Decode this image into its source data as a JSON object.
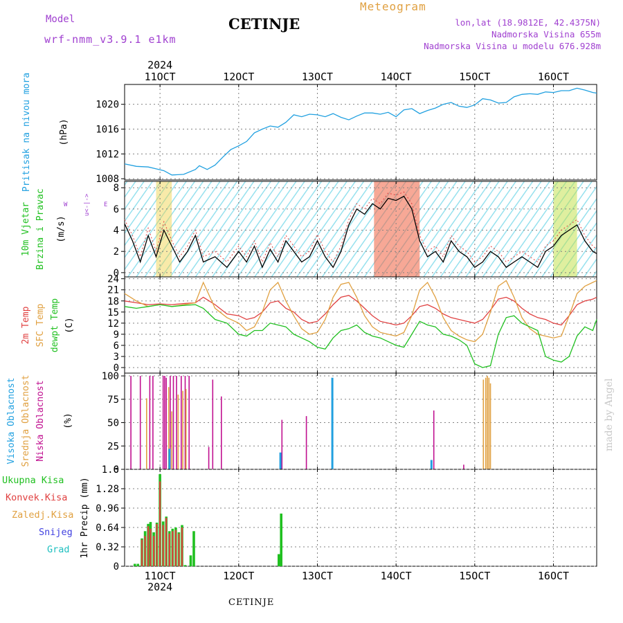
{
  "header": {
    "model_label": "Model",
    "model_name": "wrf-nmm_v3.9.1 e1km",
    "station": "CETINJE",
    "title": "Meteogram",
    "lonlat": "lon,lat (18.9812E, 42.4375N)",
    "elevation": "Nadmorska Visina 655m",
    "model_elevation": "Nadmorska Visina u modelu 676.928m"
  },
  "footer": {
    "station": "CETINJE"
  },
  "watermark": "made by Angel",
  "colors": {
    "pressure": "#20a0e0",
    "temp2m": "#e04040",
    "sfc": "#e0a040",
    "dewpt": "#20c020",
    "wind_speed": "#000000",
    "high_cloud": "#20a0e0",
    "mid_cloud": "#e0a040",
    "low_cloud": "#c01090",
    "precip_total": "#20c020",
    "precip_conv": "#e04040",
    "wind_labels": "#a040d0"
  },
  "chart_data": [
    {
      "type": "line",
      "id": "pressure",
      "ylabel_lines": [
        "Pritisak na nivou mora",
        "(hPa)"
      ],
      "yticks": [
        1008,
        1012,
        1016,
        1020
      ],
      "ylim": [
        1007.8,
        1023.2
      ],
      "xticks": [
        "11OCT",
        "12OCT",
        "13OCT",
        "14OCT",
        "15OCT",
        "16OCT"
      ],
      "xyear": "2024",
      "xlim": [
        10.55,
        16.55
      ],
      "grid": true,
      "series": [
        {
          "key": "pressure",
          "x": [
            10.55,
            10.7,
            10.85,
            10.95,
            11.05,
            11.15,
            11.3,
            11.45,
            11.5,
            11.6,
            11.7,
            11.8,
            11.9,
            12.0,
            12.1,
            12.2,
            12.3,
            12.4,
            12.5,
            12.6,
            12.7,
            12.8,
            12.9,
            13.0,
            13.1,
            13.2,
            13.3,
            13.4,
            13.5,
            13.6,
            13.7,
            13.8,
            13.9,
            14.0,
            14.1,
            14.2,
            14.3,
            14.4,
            14.5,
            14.6,
            14.7,
            14.8,
            14.9,
            15.0,
            15.1,
            15.2,
            15.3,
            15.4,
            15.5,
            15.6,
            15.7,
            15.8,
            15.9,
            16.0,
            16.1,
            16.2,
            16.3,
            16.4,
            16.5,
            16.55
          ],
          "values": [
            1010.4,
            1010.0,
            1009.9,
            1009.6,
            1009.3,
            1008.6,
            1008.7,
            1009.5,
            1010.1,
            1009.5,
            1010.2,
            1011.5,
            1012.7,
            1013.3,
            1014.0,
            1015.4,
            1016.0,
            1016.5,
            1016.3,
            1017.1,
            1018.3,
            1018.0,
            1018.4,
            1018.3,
            1018.0,
            1018.5,
            1017.9,
            1017.5,
            1018.1,
            1018.6,
            1018.6,
            1018.4,
            1018.7,
            1018.0,
            1019.1,
            1019.3,
            1018.5,
            1019.0,
            1019.4,
            1020.0,
            1020.3,
            1019.7,
            1019.5,
            1019.9,
            1020.9,
            1020.7,
            1020.2,
            1020.3,
            1021.2,
            1021.6,
            1021.7,
            1021.6,
            1022.0,
            1021.9,
            1022.2,
            1022.2,
            1022.6,
            1022.3,
            1021.9,
            1021.8
          ]
        }
      ]
    },
    {
      "type": "line",
      "id": "wind",
      "ylabel_lines": [
        "10m Vjetar",
        "Brzina i Pravac",
        "(m/s)"
      ],
      "compass_labels": [
        "W",
        "E",
        "N",
        "S"
      ],
      "compass_note": "u<-|->",
      "yticks": [
        0,
        2,
        4,
        6,
        8
      ],
      "ylim": [
        -0.4,
        8.6
      ],
      "xlim": [
        10.55,
        16.55
      ],
      "grid": true,
      "series": [
        {
          "key": "wind_speed",
          "x": [
            10.55,
            10.65,
            10.75,
            10.85,
            10.95,
            11.05,
            11.15,
            11.25,
            11.35,
            11.45,
            11.55,
            11.7,
            11.85,
            12.0,
            12.1,
            12.2,
            12.3,
            12.4,
            12.5,
            12.6,
            12.7,
            12.8,
            12.9,
            13.0,
            13.1,
            13.2,
            13.3,
            13.4,
            13.5,
            13.6,
            13.7,
            13.8,
            13.9,
            14.0,
            14.1,
            14.2,
            14.3,
            14.4,
            14.5,
            14.6,
            14.7,
            14.8,
            14.9,
            15.0,
            15.1,
            15.2,
            15.3,
            15.4,
            15.5,
            15.6,
            15.7,
            15.8,
            15.9,
            16.0,
            16.1,
            16.2,
            16.3,
            16.4,
            16.5,
            16.55
          ],
          "values": [
            4.6,
            3.0,
            1.0,
            3.5,
            1.5,
            4.0,
            2.5,
            1.0,
            2.0,
            3.5,
            1.0,
            1.5,
            0.5,
            2.0,
            1.0,
            2.5,
            0.5,
            2.2,
            1.0,
            3.0,
            2.0,
            1.0,
            1.5,
            3.0,
            1.5,
            0.5,
            2.0,
            4.5,
            6.0,
            5.5,
            6.5,
            6.0,
            7.0,
            6.8,
            7.2,
            6.0,
            3.0,
            1.5,
            2.0,
            1.0,
            3.0,
            2.0,
            1.5,
            0.5,
            1.0,
            2.0,
            1.5,
            0.5,
            1.0,
            1.5,
            1.0,
            0.5,
            2.0,
            2.5,
            3.5,
            4.0,
            4.5,
            3.0,
            2.0,
            1.8
          ]
        },
        {
          "key": "wind_gust",
          "x": [
            10.55,
            10.65,
            10.75,
            10.85,
            10.95,
            11.05,
            11.15,
            11.25,
            11.35,
            11.45,
            11.55,
            11.7,
            11.85,
            12.0,
            12.1,
            12.2,
            12.3,
            12.4,
            12.5,
            12.6,
            12.7,
            12.8,
            12.9,
            13.0,
            13.1,
            13.2,
            13.3,
            13.4,
            13.5,
            13.6,
            13.7,
            13.8,
            13.9,
            14.0,
            14.1,
            14.2,
            14.3,
            14.4,
            14.5,
            14.6,
            14.7,
            14.8,
            14.9,
            15.0,
            15.1,
            15.2,
            15.3,
            15.4,
            15.5,
            15.6,
            15.7,
            15.8,
            15.9,
            16.0,
            16.1,
            16.2,
            16.3,
            16.4,
            16.5,
            16.55
          ],
          "values": [
            5.0,
            3.5,
            1.5,
            4.2,
            2.0,
            4.8,
            3.0,
            1.5,
            2.5,
            4.0,
            1.5,
            2.0,
            1.0,
            2.5,
            1.5,
            3.0,
            1.0,
            2.8,
            1.5,
            3.5,
            2.5,
            1.5,
            2.0,
            3.6,
            2.0,
            1.0,
            2.5,
            5.0,
            6.5,
            6.0,
            7.0,
            6.5,
            7.5,
            7.3,
            7.6,
            6.5,
            3.5,
            2.0,
            2.5,
            1.5,
            3.5,
            2.5,
            2.0,
            1.0,
            1.5,
            2.5,
            2.0,
            1.0,
            1.5,
            2.0,
            1.5,
            1.0,
            2.5,
            3.0,
            4.0,
            4.5,
            5.0,
            3.5,
            2.5,
            2.2
          ]
        }
      ]
    },
    {
      "type": "line",
      "id": "temperature",
      "ylabel_lines": [
        "2m Temp",
        "SFC Temp",
        "dewpt Temp",
        "(C)"
      ],
      "yticks": [
        0,
        3,
        6,
        9,
        12,
        15,
        18,
        21,
        24
      ],
      "ylim": [
        -1.5,
        24.5
      ],
      "xlim": [
        10.55,
        16.55
      ],
      "grid": true,
      "series": [
        {
          "key": "temp2m",
          "x": [
            10.55,
            10.7,
            10.85,
            11.0,
            11.15,
            11.3,
            11.45,
            11.55,
            11.7,
            11.85,
            12.0,
            12.1,
            12.2,
            12.3,
            12.4,
            12.5,
            12.6,
            12.7,
            12.8,
            12.9,
            13.0,
            13.1,
            13.2,
            13.3,
            13.4,
            13.5,
            13.6,
            13.7,
            13.8,
            13.9,
            14.0,
            14.1,
            14.2,
            14.3,
            14.4,
            14.5,
            14.6,
            14.7,
            14.8,
            14.9,
            15.0,
            15.1,
            15.2,
            15.3,
            15.4,
            15.5,
            15.6,
            15.7,
            15.8,
            15.9,
            16.0,
            16.1,
            16.2,
            16.3,
            16.4,
            16.5,
            16.55
          ],
          "values": [
            18.0,
            17.5,
            17.0,
            17.2,
            17.0,
            17.3,
            17.5,
            19.0,
            17.0,
            14.5,
            14.0,
            13.0,
            13.5,
            15.0,
            17.5,
            18.0,
            16.0,
            15.0,
            13.0,
            12.0,
            12.5,
            14.5,
            17.0,
            19.0,
            19.5,
            18.0,
            16.0,
            14.0,
            12.5,
            12.0,
            11.5,
            12.0,
            14.0,
            16.5,
            17.0,
            16.0,
            14.5,
            13.5,
            13.0,
            12.5,
            12.0,
            13.0,
            15.5,
            18.5,
            19.0,
            18.0,
            16.0,
            14.5,
            13.5,
            13.0,
            12.0,
            11.5,
            14.0,
            17.0,
            18.0,
            18.5,
            19.0
          ]
        },
        {
          "key": "sfc",
          "x": [
            10.55,
            10.7,
            10.85,
            11.0,
            11.15,
            11.3,
            11.45,
            11.55,
            11.7,
            11.85,
            12.0,
            12.1,
            12.2,
            12.3,
            12.4,
            12.5,
            12.6,
            12.7,
            12.8,
            12.9,
            13.0,
            13.1,
            13.2,
            13.3,
            13.4,
            13.5,
            13.6,
            13.7,
            13.8,
            13.9,
            14.0,
            14.1,
            14.2,
            14.3,
            14.4,
            14.5,
            14.6,
            14.7,
            14.8,
            14.9,
            15.0,
            15.1,
            15.2,
            15.3,
            15.4,
            15.5,
            15.6,
            15.7,
            15.8,
            15.9,
            16.0,
            16.1,
            16.2,
            16.3,
            16.4,
            16.5,
            16.55
          ],
          "values": [
            20.0,
            18.0,
            16.5,
            17.0,
            16.5,
            17.0,
            17.5,
            23.0,
            16.0,
            13.5,
            12.0,
            10.0,
            11.0,
            15.0,
            21.0,
            23.0,
            18.0,
            14.0,
            10.5,
            9.0,
            9.5,
            13.0,
            19.0,
            22.5,
            23.0,
            19.0,
            14.0,
            11.0,
            9.5,
            9.0,
            8.5,
            9.5,
            14.0,
            21.0,
            23.0,
            19.0,
            13.5,
            10.0,
            8.5,
            7.5,
            7.0,
            9.0,
            15.0,
            22.0,
            23.5,
            19.0,
            13.5,
            10.5,
            9.0,
            8.5,
            8.0,
            8.5,
            14.0,
            20.0,
            22.0,
            23.0,
            23.5
          ]
        },
        {
          "key": "dewpt",
          "x": [
            10.55,
            10.7,
            10.85,
            11.0,
            11.15,
            11.3,
            11.45,
            11.55,
            11.7,
            11.85,
            12.0,
            12.1,
            12.2,
            12.3,
            12.4,
            12.5,
            12.6,
            12.7,
            12.8,
            12.9,
            13.0,
            13.1,
            13.2,
            13.3,
            13.4,
            13.5,
            13.6,
            13.7,
            13.8,
            13.9,
            14.0,
            14.1,
            14.2,
            14.3,
            14.4,
            14.5,
            14.6,
            14.7,
            14.8,
            14.9,
            15.0,
            15.1,
            15.2,
            15.3,
            15.4,
            15.5,
            15.6,
            15.7,
            15.8,
            15.9,
            16.0,
            16.1,
            16.2,
            16.3,
            16.4,
            16.5,
            16.55
          ],
          "values": [
            16.5,
            16.0,
            16.5,
            17.0,
            16.5,
            16.8,
            17.0,
            16.0,
            13.0,
            12.0,
            9.0,
            8.5,
            10.0,
            10.0,
            12.0,
            11.5,
            11.0,
            9.0,
            8.0,
            7.0,
            5.5,
            5.0,
            8.0,
            10.0,
            10.5,
            11.5,
            9.5,
            8.5,
            8.0,
            7.0,
            6.0,
            5.5,
            9.0,
            12.5,
            11.5,
            11.0,
            9.0,
            8.5,
            7.5,
            6.0,
            1.0,
            0.0,
            0.5,
            9.0,
            13.5,
            14.0,
            12.0,
            11.0,
            10.0,
            3.0,
            2.0,
            1.5,
            3.0,
            8.5,
            11.0,
            10.0,
            13.0
          ]
        }
      ]
    },
    {
      "type": "bar",
      "id": "cloud",
      "ylabel_lines": [
        "Visoka Oblacnost",
        "Srednja Oblacnost",
        "Niska Oblacnost",
        "(%)"
      ],
      "yticks": [
        0,
        25,
        50,
        75,
        100
      ],
      "ylim": [
        0,
        103
      ],
      "xlim": [
        10.55,
        16.55
      ],
      "grid": true,
      "series": [
        {
          "key": "low_cloud",
          "x": [
            10.63,
            10.75,
            10.87,
            10.91,
            11.04,
            11.06,
            11.08,
            11.13,
            11.17,
            11.21,
            11.27,
            11.32,
            11.37,
            11.62,
            11.67,
            11.78,
            12.55,
            12.86,
            14.48,
            14.86
          ],
          "values": [
            100,
            100,
            100,
            100,
            100,
            100,
            98,
            100,
            100,
            100,
            100,
            100,
            100,
            24,
            96,
            78,
            53,
            57,
            63,
            5
          ]
        },
        {
          "key": "mid_cloud",
          "x": [
            10.83,
            11.11,
            11.15,
            11.23,
            11.29,
            11.33,
            15.11,
            15.14,
            15.16,
            15.18,
            15.2
          ],
          "values": [
            76,
            88,
            62,
            80,
            84,
            86,
            96,
            98,
            100,
            98,
            92
          ]
        },
        {
          "key": "high_cloud",
          "x": [
            11.12,
            12.53,
            13.19,
            14.45
          ],
          "values": [
            22,
            18,
            98,
            10
          ]
        }
      ]
    },
    {
      "type": "bar",
      "id": "precip",
      "legend": [
        "Ukupna Kisa",
        "Konvek.Kisa",
        "Zaledj.Kisa",
        "Snijeg",
        "Grad"
      ],
      "ylabel": "1hr Precip (mm)",
      "yticks": [
        0,
        0.32,
        0.64,
        0.96,
        1.28,
        1.6
      ],
      "ylim": [
        0,
        1.6
      ],
      "xlim": [
        10.55,
        16.55
      ],
      "xticks": [
        "11OCT",
        "12OCT",
        "13OCT",
        "14OCT",
        "15OCT",
        "16OCT"
      ],
      "xyear": "2024",
      "grid": true,
      "series": [
        {
          "key": "precip_total",
          "x": [
            10.68,
            10.72,
            10.77,
            10.81,
            10.85,
            10.88,
            10.92,
            10.96,
            11.0,
            11.04,
            11.08,
            11.12,
            11.16,
            11.2,
            11.24,
            11.28,
            11.32,
            11.39,
            11.43,
            12.51,
            12.54
          ],
          "values": [
            0.04,
            0.04,
            0.46,
            0.58,
            0.7,
            0.73,
            0.56,
            0.72,
            1.52,
            0.74,
            0.82,
            0.58,
            0.62,
            0.64,
            0.56,
            0.68,
            0.02,
            0.18,
            0.58,
            0.2,
            0.87
          ]
        },
        {
          "key": "precip_conv",
          "x": [
            10.77,
            10.81,
            10.85,
            10.88,
            10.92,
            10.96,
            11.0,
            11.04,
            11.08,
            11.12,
            11.16,
            11.2,
            11.24,
            11.28
          ],
          "values": [
            0.44,
            0.5,
            0.66,
            0.62,
            0.5,
            0.7,
            1.4,
            0.68,
            0.8,
            0.54,
            0.58,
            0.6,
            0.54,
            0.64
          ]
        }
      ]
    }
  ]
}
